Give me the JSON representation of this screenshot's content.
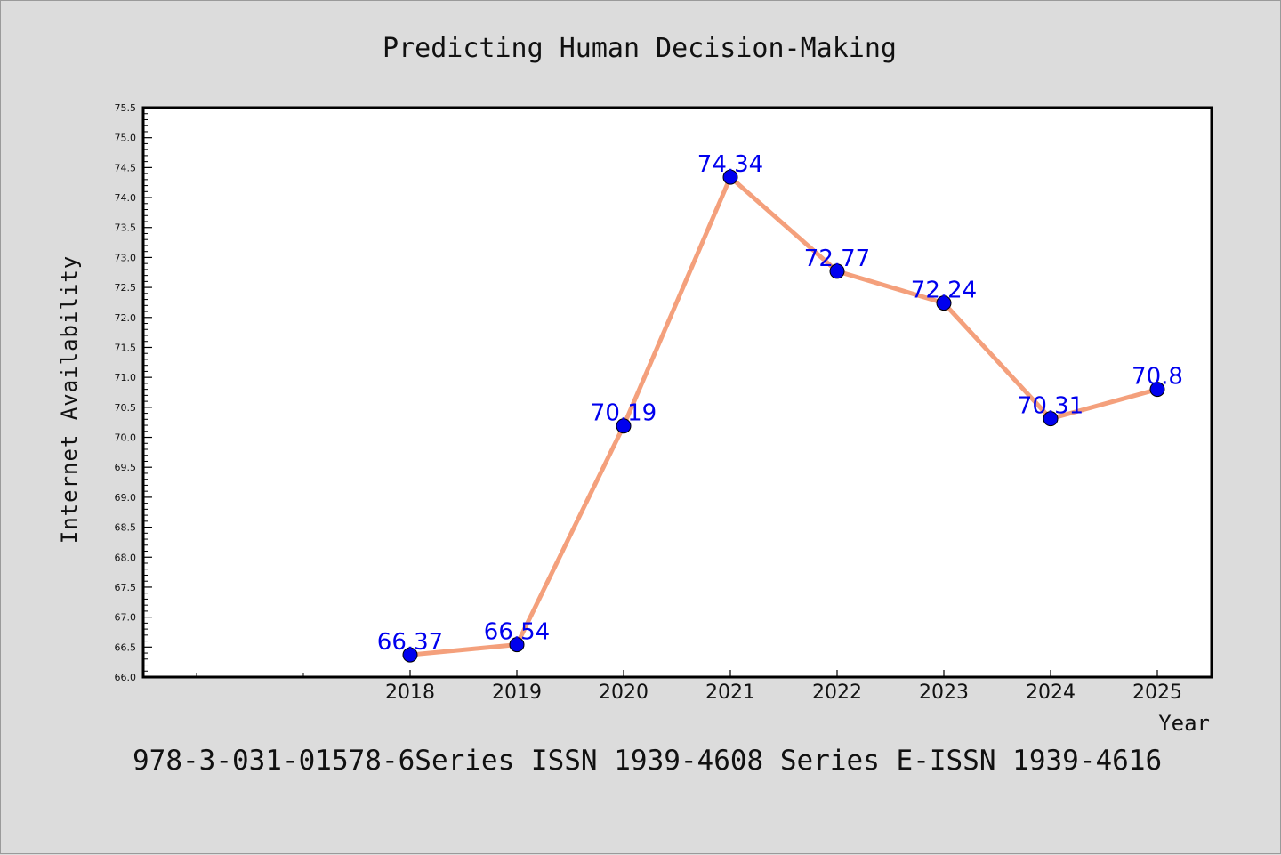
{
  "chart_data": {
    "type": "line",
    "title": "Predicting Human Decision-Making",
    "xlabel": "Year",
    "ylabel": "Internet Availability",
    "categories": [
      "2018",
      "2019",
      "2020",
      "2021",
      "2022",
      "2023",
      "2024",
      "2025"
    ],
    "series": [
      {
        "values": [
          66.37,
          66.54,
          70.19,
          74.34,
          72.77,
          72.24,
          70.31,
          70.8
        ],
        "data_labels": [
          "66.37",
          "66.54",
          "70.19",
          "74.34",
          "72.77",
          "72.24",
          "70.31",
          "70.8"
        ]
      }
    ],
    "ylim": [
      66.0,
      75.5
    ],
    "yticks": [
      "66.0",
      "66.5",
      "67.0",
      "67.5",
      "68.0",
      "68.5",
      "69.0",
      "69.5",
      "70.0",
      "70.5",
      "71.0",
      "71.5",
      "72.0",
      "72.5",
      "73.0",
      "73.5",
      "74.0",
      "74.5",
      "75.0",
      "75.5"
    ],
    "grid": false,
    "colors": {
      "line": "#f4a07c",
      "marker": "#0000ee",
      "data_label": "#0000ee",
      "plot_background": "#ffffff",
      "figure_background": "#dcdcdc"
    }
  },
  "footer": {
    "text": "978-3-031-01578-6Series ISSN 1939-4608 Series E-ISSN 1939-4616"
  }
}
